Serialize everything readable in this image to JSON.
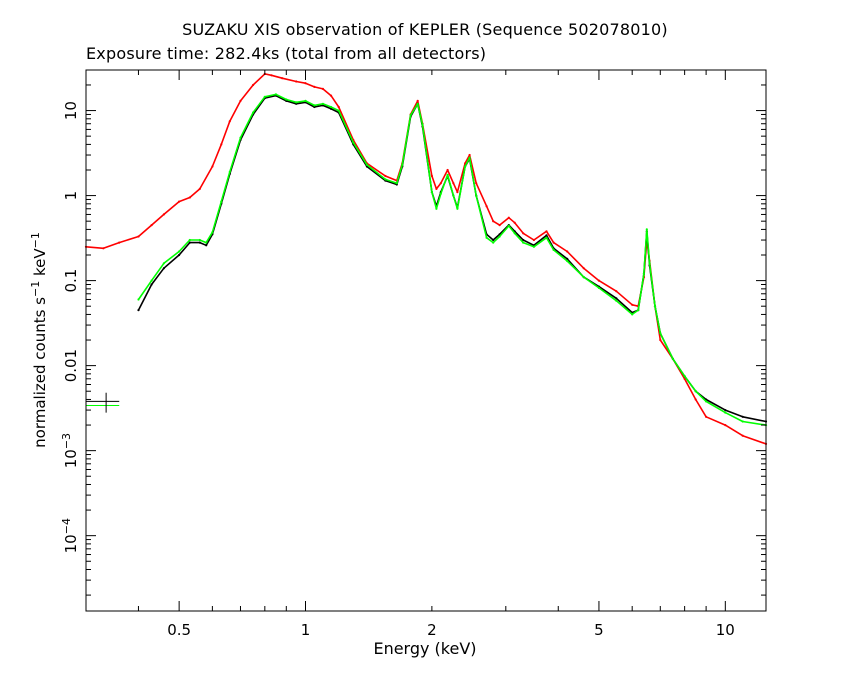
{
  "chart_data": {
    "type": "line",
    "title": "SUZAKU XIS observation of KEPLER (Sequence 502078010)",
    "subtitle": "Exposure time: 282.4ks (total from all detectors)",
    "xlabel": "Energy (keV)",
    "ylabel_main": "normalized counts s",
    "ylabel_mid": " keV",
    "ylabel_sup": "−1",
    "x_scale": "log",
    "y_scale": "log",
    "xlim": [
      0.3,
      12.5
    ],
    "ylim": [
      1.3e-05,
      30
    ],
    "grid": false,
    "x_ticks": [
      0.5,
      1,
      2,
      5,
      10
    ],
    "x_tick_labels": [
      "0.5",
      "1",
      "2",
      "5",
      "10"
    ],
    "y_ticks": [
      {
        "value": 10,
        "base": "10",
        "exp": ""
      },
      {
        "value": 1,
        "base": "1",
        "exp": ""
      },
      {
        "value": 0.1,
        "base": "0.1",
        "exp": ""
      },
      {
        "value": 0.01,
        "base": "0.01",
        "exp": ""
      },
      {
        "value": 0.001,
        "base": "10",
        "exp": "−3"
      },
      {
        "value": 0.0001,
        "base": "10",
        "exp": "−4"
      }
    ],
    "series": [
      {
        "color": "#ff0000",
        "x": [
          0.3,
          0.33,
          0.36,
          0.4,
          0.43,
          0.46,
          0.5,
          0.53,
          0.56,
          0.6,
          0.63,
          0.66,
          0.7,
          0.75,
          0.8,
          0.83,
          0.88,
          0.95,
          1.0,
          1.05,
          1.1,
          1.15,
          1.2,
          1.3,
          1.4,
          1.55,
          1.65,
          1.7,
          1.78,
          1.85,
          1.9,
          2.0,
          2.05,
          2.1,
          2.18,
          2.25,
          2.3,
          2.4,
          2.46,
          2.55,
          2.7,
          2.8,
          2.9,
          3.05,
          3.15,
          3.3,
          3.5,
          3.75,
          3.9,
          4.2,
          4.6,
          5.0,
          5.5,
          6.0,
          6.2,
          6.4,
          6.5,
          6.6,
          6.8,
          7.0,
          7.5,
          8.0,
          8.5,
          9.0,
          10.0,
          11.0,
          12.5
        ],
        "y": [
          0.25,
          0.24,
          0.28,
          0.33,
          0.45,
          0.6,
          0.85,
          0.95,
          1.2,
          2.2,
          4.0,
          7.5,
          13.0,
          20.0,
          27.0,
          26.0,
          24.0,
          22.0,
          21.0,
          19.0,
          18.0,
          15.0,
          11.0,
          4.5,
          2.4,
          1.7,
          1.5,
          2.4,
          9.0,
          13.0,
          7.0,
          1.7,
          1.2,
          1.4,
          2.0,
          1.4,
          1.1,
          2.4,
          3.0,
          1.4,
          0.75,
          0.5,
          0.45,
          0.55,
          0.48,
          0.36,
          0.3,
          0.38,
          0.28,
          0.22,
          0.14,
          0.1,
          0.075,
          0.052,
          0.05,
          0.11,
          0.3,
          0.17,
          0.05,
          0.02,
          0.012,
          0.007,
          0.004,
          0.0025,
          0.002,
          0.0015,
          0.0012
        ]
      },
      {
        "color": "#000000",
        "x": [
          0.4,
          0.43,
          0.46,
          0.5,
          0.53,
          0.56,
          0.58,
          0.6,
          0.63,
          0.66,
          0.7,
          0.75,
          0.8,
          0.85,
          0.9,
          0.95,
          1.0,
          1.05,
          1.1,
          1.15,
          1.2,
          1.3,
          1.4,
          1.55,
          1.65,
          1.7,
          1.78,
          1.85,
          1.9,
          2.0,
          2.05,
          2.1,
          2.18,
          2.25,
          2.3,
          2.4,
          2.46,
          2.55,
          2.7,
          2.8,
          2.9,
          3.05,
          3.15,
          3.3,
          3.5,
          3.75,
          3.9,
          4.2,
          4.6,
          5.0,
          5.5,
          6.0,
          6.2,
          6.4,
          6.5,
          6.6,
          6.8,
          7.0,
          7.5,
          8.0,
          8.5,
          9.0,
          10.0,
          11.0,
          12.5
        ],
        "y": [
          0.045,
          0.09,
          0.14,
          0.2,
          0.28,
          0.28,
          0.26,
          0.35,
          0.8,
          1.8,
          4.5,
          9.0,
          14.0,
          15.0,
          13.0,
          12.0,
          12.5,
          11.0,
          11.5,
          10.5,
          9.5,
          4.0,
          2.2,
          1.5,
          1.35,
          2.2,
          8.5,
          12.0,
          6.5,
          1.1,
          0.75,
          1.1,
          1.7,
          1.0,
          0.72,
          2.2,
          2.7,
          1.0,
          0.35,
          0.3,
          0.35,
          0.45,
          0.38,
          0.3,
          0.26,
          0.34,
          0.24,
          0.18,
          0.11,
          0.085,
          0.062,
          0.042,
          0.045,
          0.12,
          0.38,
          0.15,
          0.05,
          0.024,
          0.012,
          0.0075,
          0.005,
          0.004,
          0.003,
          0.0025,
          0.0022
        ]
      },
      {
        "color": "#00ff00",
        "x": [
          0.4,
          0.43,
          0.46,
          0.5,
          0.53,
          0.56,
          0.58,
          0.6,
          0.63,
          0.66,
          0.7,
          0.75,
          0.8,
          0.85,
          0.9,
          0.95,
          1.0,
          1.05,
          1.1,
          1.15,
          1.2,
          1.3,
          1.4,
          1.55,
          1.65,
          1.7,
          1.78,
          1.85,
          1.9,
          2.0,
          2.05,
          2.1,
          2.18,
          2.25,
          2.3,
          2.4,
          2.46,
          2.55,
          2.7,
          2.8,
          2.9,
          3.05,
          3.15,
          3.3,
          3.5,
          3.75,
          3.9,
          4.2,
          4.6,
          5.0,
          5.5,
          6.0,
          6.2,
          6.4,
          6.5,
          6.6,
          6.8,
          7.0,
          7.5,
          8.0,
          8.5,
          9.0,
          10.0,
          11.0,
          12.5
        ],
        "y": [
          0.06,
          0.1,
          0.16,
          0.22,
          0.3,
          0.3,
          0.28,
          0.37,
          0.85,
          1.9,
          4.8,
          9.5,
          14.5,
          15.5,
          13.5,
          12.5,
          13.0,
          11.5,
          12.0,
          11.0,
          10.0,
          4.2,
          2.3,
          1.55,
          1.4,
          2.3,
          8.8,
          12.0,
          6.8,
          1.1,
          0.7,
          1.05,
          1.75,
          1.0,
          0.7,
          2.2,
          2.8,
          1.0,
          0.32,
          0.28,
          0.33,
          0.44,
          0.36,
          0.28,
          0.25,
          0.32,
          0.23,
          0.17,
          0.11,
          0.082,
          0.058,
          0.04,
          0.045,
          0.12,
          0.4,
          0.16,
          0.05,
          0.024,
          0.012,
          0.0075,
          0.005,
          0.0038,
          0.0028,
          0.0022,
          0.002
        ]
      }
    ],
    "legend_marker": {
      "x_range": [
        0.3,
        0.36
      ],
      "black_y": 0.0038,
      "green_y": 0.0034,
      "tick_x": 0.335,
      "tick_y_range": [
        0.0028,
        0.0048
      ]
    }
  }
}
